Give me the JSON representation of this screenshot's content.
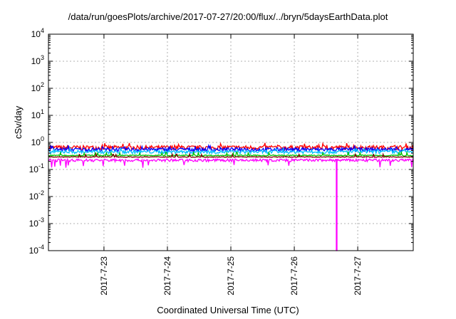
{
  "chart_data": {
    "type": "line",
    "title": "/data/run/goesPlots/archive/2017-07-27/20:00/flux/../bryn/5daysEarthData.plot",
    "xlabel": "Coordinated Universal Time (UTC)",
    "ylabel": "cSv/day",
    "yscale": "log",
    "ylim": [
      0.0001,
      10000
    ],
    "y_ticks": [
      {
        "base": "10",
        "exp": "-4"
      },
      {
        "base": "10",
        "exp": "-3"
      },
      {
        "base": "10",
        "exp": "-2"
      },
      {
        "base": "10",
        "exp": "-1"
      },
      {
        "base": "10",
        "exp": "0"
      },
      {
        "base": "10",
        "exp": "1"
      },
      {
        "base": "10",
        "exp": "2"
      },
      {
        "base": "10",
        "exp": "3"
      },
      {
        "base": "10",
        "exp": "4"
      }
    ],
    "xlim": [
      "2017-07-22 03:00",
      "2017-07-27 21:00"
    ],
    "x_ticks": [
      "2017-7-23",
      "2017-7-24",
      "2017-7-25",
      "2017-7-26",
      "2017-7-27"
    ],
    "grid": true,
    "series": [
      {
        "color": "#ff0000",
        "level": 0.65,
        "jitter": 0.18
      },
      {
        "color": "#0000ff",
        "level": 0.55,
        "jitter": 0.16
      },
      {
        "color": "#00c0ff",
        "level": 0.45,
        "jitter": 0.14
      },
      {
        "color": "#00c000",
        "level": 0.33,
        "jitter": 0.05
      },
      {
        "color": "#800000",
        "level": 0.29,
        "jitter": 0.03
      },
      {
        "color": "#ff00ff",
        "level": 0.22,
        "jitter": 0.12,
        "dropout": {
          "x": "2017-07-26 16:00",
          "min": 0.0001
        }
      }
    ]
  }
}
